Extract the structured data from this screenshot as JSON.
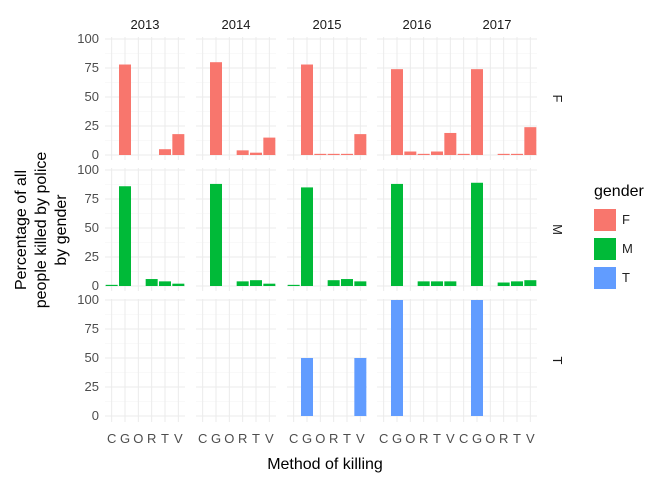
{
  "chart_data": {
    "type": "bar",
    "facet_cols": [
      "2013",
      "2014",
      "2015",
      "2016",
      "2017"
    ],
    "facet_rows": [
      "F",
      "M",
      "T"
    ],
    "categories": [
      "C",
      "G",
      "O",
      "R",
      "T",
      "V"
    ],
    "xlabel": "Method of killing",
    "ylabel": [
      "Percentage of all",
      "people killed by police",
      "by gender"
    ],
    "ylim": [
      0,
      105
    ],
    "yticks": [
      0,
      25,
      50,
      75,
      100
    ],
    "grid": true,
    "legend": {
      "title": "gender",
      "position": "right",
      "items": [
        {
          "label": "F",
          "color": "#F8766D"
        },
        {
          "label": "M",
          "color": "#00BA38"
        },
        {
          "label": "T",
          "color": "#619CFF"
        }
      ]
    },
    "panels": {
      "F": {
        "2013": [
          0,
          78,
          0,
          0,
          5,
          18
        ],
        "2014": [
          0,
          80,
          0,
          4,
          2,
          15
        ],
        "2015": [
          0,
          78,
          1,
          1,
          1,
          18
        ],
        "2016": [
          0,
          74,
          3,
          1,
          3,
          19
        ],
        "2017": [
          1,
          74,
          0,
          1,
          1,
          24
        ]
      },
      "M": {
        "2013": [
          1,
          86,
          0,
          6,
          4,
          2
        ],
        "2014": [
          0,
          88,
          0,
          4,
          5,
          2
        ],
        "2015": [
          1,
          85,
          0,
          5,
          6,
          4
        ],
        "2016": [
          0,
          88,
          0,
          4,
          4,
          4
        ],
        "2017": [
          0,
          89,
          0,
          3,
          4,
          5
        ]
      },
      "T": {
        "2013": [
          0,
          0,
          0,
          0,
          0,
          0
        ],
        "2014": [
          0,
          0,
          0,
          0,
          0,
          0
        ],
        "2015": [
          0,
          50,
          0,
          0,
          0,
          50
        ],
        "2016": [
          0,
          100,
          0,
          0,
          0,
          0
        ],
        "2017": [
          0,
          100,
          0,
          0,
          0,
          0
        ]
      }
    }
  }
}
